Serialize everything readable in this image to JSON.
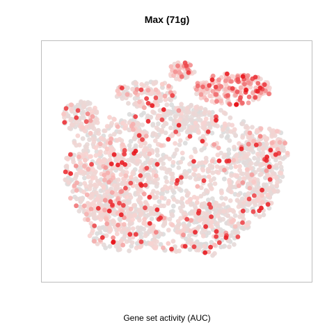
{
  "chart_data": {
    "type": "scatter",
    "title": "Max (71g)",
    "xlabel": "Gene set activity (AUC)",
    "ylabel": "",
    "x_range": [
      0,
      1
    ],
    "y_range": [
      0,
      1
    ],
    "grid": false,
    "legend": "none",
    "colors": {
      "low": "#dcdcdc",
      "mid": "#f9d2cf",
      "high": "#e8141b"
    },
    "regions": [
      {
        "cx": 0.5,
        "cy": 0.57,
        "rx": 0.4,
        "ry": 0.33,
        "n": 950,
        "activity": 0.22
      },
      {
        "cx": 0.24,
        "cy": 0.55,
        "rx": 0.18,
        "ry": 0.25,
        "n": 420,
        "activity": 0.32
      },
      {
        "cx": 0.12,
        "cy": 0.3,
        "rx": 0.07,
        "ry": 0.07,
        "n": 90,
        "activity": 0.25
      },
      {
        "cx": 0.72,
        "cy": 0.18,
        "rx": 0.15,
        "ry": 0.07,
        "n": 200,
        "activity": 0.55
      },
      {
        "cx": 0.52,
        "cy": 0.1,
        "rx": 0.05,
        "ry": 0.04,
        "n": 55,
        "activity": 0.45
      },
      {
        "cx": 0.38,
        "cy": 0.2,
        "rx": 0.12,
        "ry": 0.06,
        "n": 120,
        "activity": 0.3
      },
      {
        "cx": 0.55,
        "cy": 0.31,
        "rx": 0.11,
        "ry": 0.06,
        "n": 100,
        "activity": 0.15
      },
      {
        "cx": 0.8,
        "cy": 0.55,
        "rx": 0.12,
        "ry": 0.15,
        "n": 200,
        "activity": 0.2
      },
      {
        "cx": 0.85,
        "cy": 0.4,
        "rx": 0.08,
        "ry": 0.05,
        "n": 60,
        "activity": 0.3
      },
      {
        "cx": 0.62,
        "cy": 0.8,
        "rx": 0.13,
        "ry": 0.12,
        "n": 160,
        "activity": 0.12
      },
      {
        "cx": 0.3,
        "cy": 0.78,
        "rx": 0.16,
        "ry": 0.12,
        "n": 180,
        "activity": 0.18
      },
      {
        "cx": 0.9,
        "cy": 0.45,
        "rx": 0.04,
        "ry": 0.05,
        "n": 40,
        "activity": 0.25
      }
    ]
  }
}
